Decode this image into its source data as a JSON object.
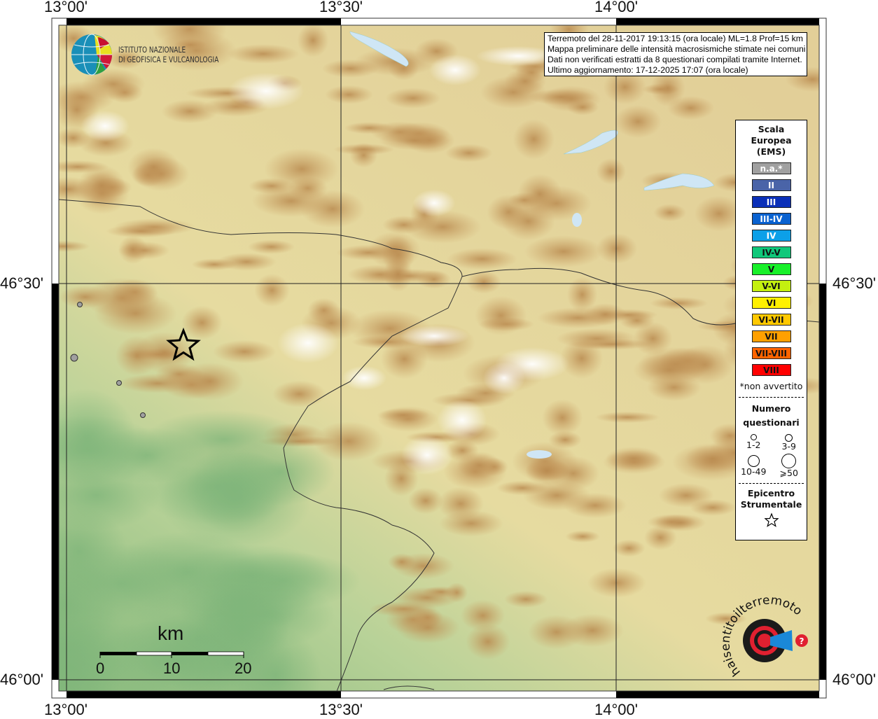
{
  "map": {
    "lon_labels": [
      "13°00'",
      "13°30'",
      "14°00'"
    ],
    "lat_labels": [
      "46°30'",
      "46°00'"
    ],
    "scale_bar": {
      "unit": "km",
      "ticks": [
        "0",
        "10",
        "20"
      ]
    },
    "epicenter": {
      "symbol": "star-icon"
    },
    "terrain_colors": {
      "lowland": "#8fbf7f",
      "hills": "#e8dca0",
      "mountains": "#c4955a",
      "snow": "#f4f2f2",
      "water": "#cfe6f5"
    }
  },
  "info": {
    "line1": "Terremoto del 28-11-2017 19:13:15 (ora locale) ML=1.8 Prof=15 km",
    "line2": "Mappa preliminare delle intensità macrosismiche stimate nei comuni",
    "line3": "Dati non verificati estratti da 8 questionari compilati tramite Internet.",
    "line4": "Ultimo aggiornamento: 17-12-2025 17:07 (ora locale)"
  },
  "logos": {
    "ingv": "ISTITUTO NAZIONALE DI GEOFISICA E VULCANOLOGIA",
    "hsit": "www.haisentitoilterremoto.it"
  },
  "ingv_lines": [
    "ISTITUTO NAZIONALE",
    "DI GEOFISICA E VULCANOLOGIA"
  ],
  "legend": {
    "title": [
      "Scala",
      "Europea",
      "(EMS)"
    ],
    "scale": [
      {
        "label": "n.a.*",
        "color": "#a0a0a0",
        "text": "#ffffff"
      },
      {
        "label": "II",
        "color": "#4a64a8",
        "text": "#ffffff"
      },
      {
        "label": "III",
        "color": "#0a2fb8",
        "text": "#ffffff"
      },
      {
        "label": "III-IV",
        "color": "#0a62d0",
        "text": "#ffffff"
      },
      {
        "label": "IV",
        "color": "#0ca0e8",
        "text": "#ffffff"
      },
      {
        "label": "IV-V",
        "color": "#10c87a",
        "text": "#111111"
      },
      {
        "label": "V",
        "color": "#18f02a",
        "text": "#111111"
      },
      {
        "label": "V-VI",
        "color": "#c4f010",
        "text": "#111111"
      },
      {
        "label": "VI",
        "color": "#fff000",
        "text": "#111111"
      },
      {
        "label": "VI-VII",
        "color": "#ffc800",
        "text": "#111111"
      },
      {
        "label": "VII",
        "color": "#ffa000",
        "text": "#111111"
      },
      {
        "label": "VII-VIII",
        "color": "#ff6400",
        "text": "#111111"
      },
      {
        "label": "VIII",
        "color": "#ff0000",
        "text": "#111111"
      }
    ],
    "note": "*non avvertito",
    "count_title": [
      "Numero",
      "questionari"
    ],
    "counts": [
      "1-2",
      "3-9",
      "10-49",
      "⩾50"
    ],
    "epicenter_title": [
      "Epicentro",
      "Strumentale"
    ]
  }
}
